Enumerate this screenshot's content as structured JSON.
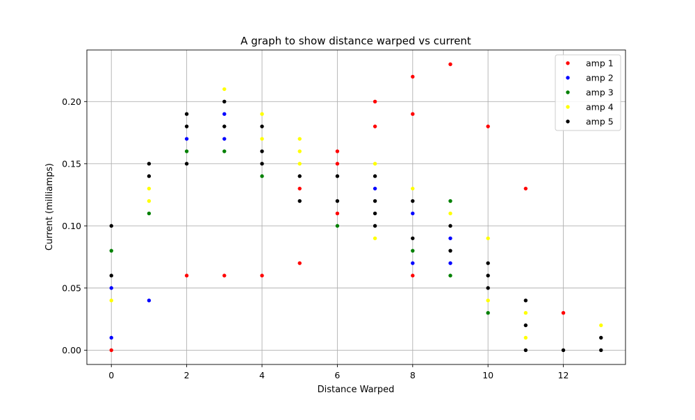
{
  "chart_data": {
    "type": "scatter",
    "title": "A graph to show distance warped vs current",
    "xlabel": "Distance Warped",
    "ylabel": "Current (milliamps)",
    "xlim": [
      -0.65,
      13.65
    ],
    "ylim": [
      -0.0115,
      0.2415
    ],
    "xticks": [
      0,
      2,
      4,
      6,
      8,
      10,
      12
    ],
    "xtick_labels": [
      "0",
      "2",
      "4",
      "6",
      "8",
      "10",
      "12"
    ],
    "yticks": [
      0.0,
      0.05,
      0.1,
      0.15,
      0.2
    ],
    "ytick_labels": [
      "0.00",
      "0.05",
      "0.10",
      "0.15",
      "0.20"
    ],
    "grid": true,
    "legend_position": "top-right",
    "series": [
      {
        "name": "amp 1",
        "color": "#ff0000",
        "points": [
          [
            0,
            0.0
          ],
          [
            2,
            0.06
          ],
          [
            3,
            0.06
          ],
          [
            4,
            0.06
          ],
          [
            5,
            0.07
          ],
          [
            5,
            0.13
          ],
          [
            6,
            0.11
          ],
          [
            6,
            0.15
          ],
          [
            6,
            0.16
          ],
          [
            7,
            0.18
          ],
          [
            7,
            0.2
          ],
          [
            8,
            0.06
          ],
          [
            8,
            0.19
          ],
          [
            8,
            0.22
          ],
          [
            9,
            0.23
          ],
          [
            10,
            0.18
          ],
          [
            11,
            0.13
          ],
          [
            12,
            0.03
          ]
        ]
      },
      {
        "name": "amp 2",
        "color": "#0000ff",
        "points": [
          [
            0,
            0.01
          ],
          [
            0,
            0.05
          ],
          [
            1,
            0.04
          ],
          [
            2,
            0.17
          ],
          [
            3,
            0.17
          ],
          [
            3,
            0.19
          ],
          [
            7,
            0.13
          ],
          [
            8,
            0.07
          ],
          [
            8,
            0.11
          ],
          [
            9,
            0.07
          ],
          [
            9,
            0.09
          ]
        ]
      },
      {
        "name": "amp 3",
        "color": "#008000",
        "points": [
          [
            0,
            0.08
          ],
          [
            1,
            0.11
          ],
          [
            2,
            0.16
          ],
          [
            3,
            0.16
          ],
          [
            4,
            0.14
          ],
          [
            6,
            0.1
          ],
          [
            8,
            0.08
          ],
          [
            9,
            0.06
          ],
          [
            9,
            0.12
          ],
          [
            10,
            0.03
          ]
        ]
      },
      {
        "name": "amp 4",
        "color": "#ffff00",
        "points": [
          [
            0,
            0.04
          ],
          [
            1,
            0.12
          ],
          [
            1,
            0.13
          ],
          [
            3,
            0.21
          ],
          [
            4,
            0.17
          ],
          [
            4,
            0.19
          ],
          [
            5,
            0.15
          ],
          [
            5,
            0.16
          ],
          [
            5,
            0.17
          ],
          [
            7,
            0.09
          ],
          [
            7,
            0.15
          ],
          [
            8,
            0.13
          ],
          [
            9,
            0.11
          ],
          [
            10,
            0.04
          ],
          [
            10,
            0.09
          ],
          [
            11,
            0.01
          ],
          [
            11,
            0.03
          ],
          [
            13,
            0.02
          ]
        ]
      },
      {
        "name": "amp 5",
        "color": "#000000",
        "points": [
          [
            0,
            0.06
          ],
          [
            0,
            0.1
          ],
          [
            1,
            0.14
          ],
          [
            1,
            0.15
          ],
          [
            2,
            0.15
          ],
          [
            2,
            0.18
          ],
          [
            2,
            0.19
          ],
          [
            3,
            0.18
          ],
          [
            3,
            0.2
          ],
          [
            4,
            0.15
          ],
          [
            4,
            0.16
          ],
          [
            4,
            0.18
          ],
          [
            5,
            0.12
          ],
          [
            5,
            0.14
          ],
          [
            6,
            0.12
          ],
          [
            6,
            0.14
          ],
          [
            7,
            0.1
          ],
          [
            7,
            0.11
          ],
          [
            7,
            0.12
          ],
          [
            7,
            0.14
          ],
          [
            8,
            0.09
          ],
          [
            8,
            0.12
          ],
          [
            9,
            0.08
          ],
          [
            9,
            0.1
          ],
          [
            10,
            0.05
          ],
          [
            10,
            0.06
          ],
          [
            10,
            0.07
          ],
          [
            11,
            0.0
          ],
          [
            11,
            0.02
          ],
          [
            11,
            0.04
          ],
          [
            12,
            0.0
          ],
          [
            13,
            0.0
          ],
          [
            13,
            0.01
          ]
        ]
      }
    ]
  }
}
